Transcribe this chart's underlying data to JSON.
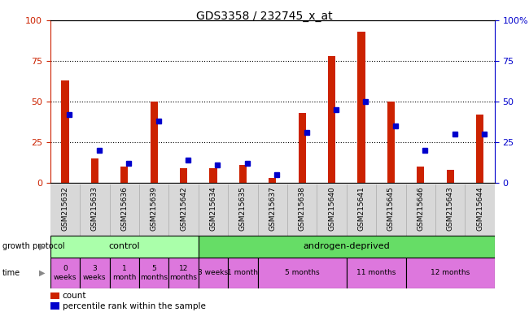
{
  "title": "GDS3358 / 232745_x_at",
  "samples": [
    "GSM215632",
    "GSM215633",
    "GSM215636",
    "GSM215639",
    "GSM215642",
    "GSM215634",
    "GSM215635",
    "GSM215637",
    "GSM215638",
    "GSM215640",
    "GSM215641",
    "GSM215645",
    "GSM215646",
    "GSM215643",
    "GSM215644"
  ],
  "count_values": [
    63,
    15,
    10,
    50,
    9,
    9,
    11,
    3,
    43,
    78,
    93,
    50,
    10,
    8,
    42
  ],
  "percentile_values": [
    42,
    20,
    12,
    38,
    14,
    11,
    12,
    5,
    31,
    45,
    50,
    35,
    20,
    30,
    30
  ],
  "count_color": "#cc2200",
  "percentile_color": "#0000cc",
  "yticks": [
    0,
    25,
    50,
    75,
    100
  ],
  "control_label": "control",
  "androgen_label": "androgen-deprived",
  "control_bg": "#aaffaa",
  "androgen_bg": "#66dd66",
  "time_bg": "#dd77dd",
  "background_color": "#ffffff",
  "sample_label_bg": "#d8d8d8",
  "time_groups": [
    {
      "label": "0\nweeks",
      "start": 0,
      "end": 0
    },
    {
      "label": "3\nweeks",
      "start": 1,
      "end": 1
    },
    {
      "label": "1\nmonth",
      "start": 2,
      "end": 2
    },
    {
      "label": "5\nmonths",
      "start": 3,
      "end": 3
    },
    {
      "label": "12\nmonths",
      "start": 4,
      "end": 4
    },
    {
      "label": "3 weeks",
      "start": 5,
      "end": 5
    },
    {
      "label": "1 month",
      "start": 6,
      "end": 6
    },
    {
      "label": "5 months",
      "start": 7,
      "end": 9
    },
    {
      "label": "11 months",
      "start": 10,
      "end": 11
    },
    {
      "label": "12 months",
      "start": 12,
      "end": 14
    }
  ],
  "n_control": 5,
  "n_total": 15,
  "bar_width": 0.25,
  "marker_size": 5,
  "legend_count": "count",
  "legend_pct": "percentile rank within the sample",
  "right_ytick_labels": [
    "0",
    "25",
    "50",
    "75",
    "100%"
  ]
}
